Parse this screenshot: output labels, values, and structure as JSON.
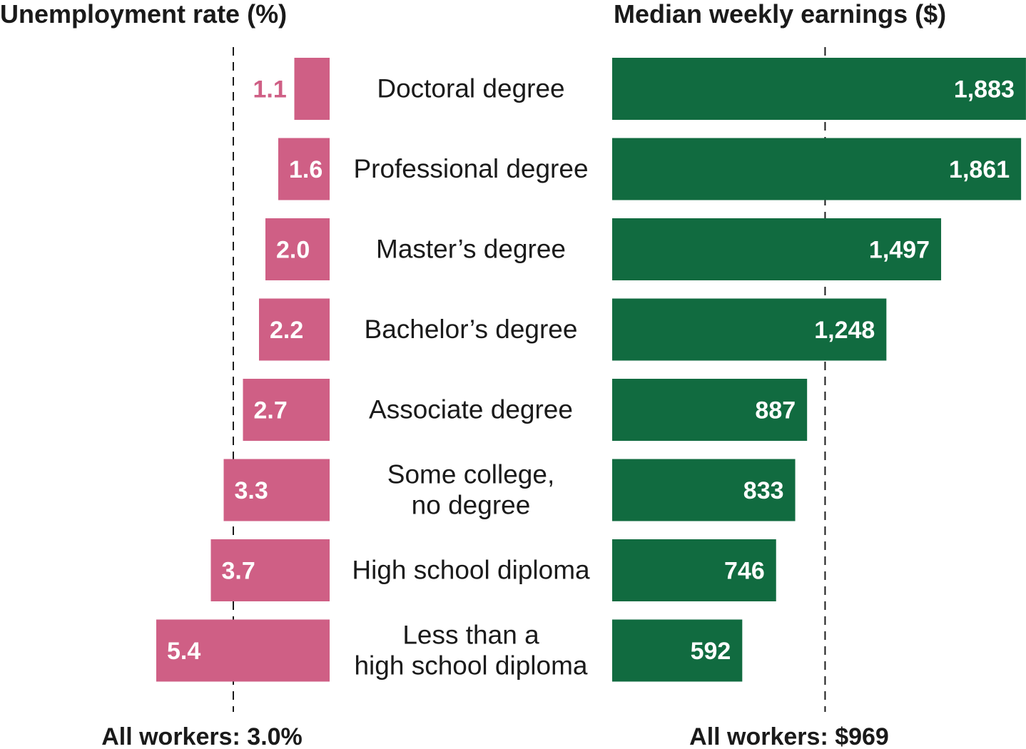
{
  "chart_data": [
    {
      "type": "bar",
      "orientation": "horizontal",
      "direction": "right-to-left",
      "title": "Unemployment rate (%)",
      "categories": [
        "Doctoral degree",
        "Professional degree",
        "Master’s degree",
        "Bachelor’s degree",
        "Associate degree",
        "Some college,\nno degree",
        "High school diploma",
        "Less than a\nhigh school diploma"
      ],
      "values": [
        1.1,
        1.6,
        2.0,
        2.2,
        2.7,
        3.3,
        3.7,
        5.4
      ],
      "value_labels": [
        "1.1",
        "1.6",
        "2.0",
        "2.2",
        "2.7",
        "3.3",
        "3.7",
        "5.4"
      ],
      "reference": {
        "value": 3.0,
        "label": "All workers: 3.0%"
      },
      "color": "#cf5f85",
      "grid": false,
      "legend": "none"
    },
    {
      "type": "bar",
      "orientation": "horizontal",
      "direction": "left-to-right",
      "title": "Median weekly earnings ($)",
      "categories": [
        "Doctoral degree",
        "Professional degree",
        "Master’s degree",
        "Bachelor’s degree",
        "Associate degree",
        "Some college,\nno degree",
        "High school diploma",
        "Less than a\nhigh school diploma"
      ],
      "values": [
        1883,
        1861,
        1497,
        1248,
        887,
        833,
        746,
        592
      ],
      "value_labels": [
        "1,883",
        "1,861",
        "1,497",
        "1,248",
        "887",
        "833",
        "746",
        "592"
      ],
      "reference": {
        "value": 969,
        "label": "All workers: $969"
      },
      "color": "#116b40",
      "grid": false,
      "legend": "none"
    }
  ]
}
